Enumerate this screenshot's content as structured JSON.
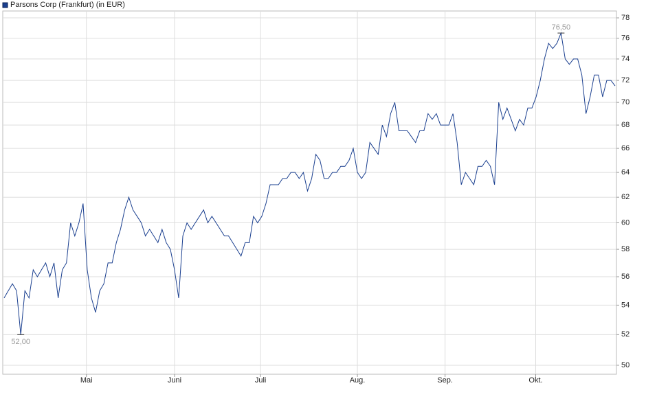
{
  "chart_data": {
    "type": "line",
    "series": [
      {
        "name": "Parsons Corp (Frankfurt) (in EUR)",
        "color": "#1a3f8f",
        "values": [
          54.5,
          55,
          55.5,
          55,
          52,
          55,
          54.5,
          56.5,
          56,
          56.5,
          57,
          56,
          57,
          54.5,
          56.5,
          57,
          60,
          59,
          60,
          61.5,
          56.5,
          54.5,
          53.5,
          55,
          55.5,
          57,
          57,
          58.5,
          59.5,
          61,
          62,
          61,
          60.5,
          60,
          59,
          59.5,
          59,
          58.5,
          59.5,
          58.5,
          58,
          56.5,
          54.5,
          59,
          60,
          59.5,
          60,
          60.5,
          61,
          60,
          60.5,
          60,
          59.5,
          59,
          59,
          58.5,
          58,
          57.5,
          58.5,
          58.5,
          60.5,
          60,
          60.5,
          61.5,
          63,
          63,
          63,
          63.5,
          63.5,
          64,
          64,
          63.5,
          64,
          62.5,
          63.5,
          65.5,
          65,
          63.5,
          63.5,
          64,
          64,
          64.5,
          64.5,
          65,
          66,
          64,
          63.5,
          64,
          66.5,
          66,
          65.5,
          68,
          67,
          69,
          70,
          67.5,
          67.5,
          67.5,
          67,
          66.5,
          67.5,
          67.5,
          69,
          68.5,
          69,
          68,
          68,
          68,
          69,
          66.5,
          63,
          64,
          63.5,
          63,
          64.5,
          64.5,
          65,
          64.5,
          63,
          70,
          68.5,
          69.5,
          68.5,
          67.5,
          68.5,
          68,
          69.5,
          69.5,
          70.5,
          72,
          74,
          75.5,
          75,
          75.5,
          76.5,
          74,
          73.5,
          74,
          74,
          72.5,
          69,
          70.5,
          72.5,
          72.5,
          70.5,
          72,
          72,
          71.5
        ]
      }
    ],
    "xlim": [
      -0.33,
      147.33
    ],
    "xticks": [
      {
        "value": 19.8,
        "label": "Mai"
      },
      {
        "value": 41,
        "label": "Juni"
      },
      {
        "value": 61.7,
        "label": "Juli"
      },
      {
        "value": 85,
        "label": "Aug."
      },
      {
        "value": 106.1,
        "label": "Sep."
      },
      {
        "value": 127.9,
        "label": "Okt."
      }
    ],
    "ylim": [
      49.43,
      78.69
    ],
    "yticks": [
      50,
      52,
      54,
      56,
      58,
      60,
      62,
      64,
      66,
      68,
      70,
      72,
      74,
      76,
      78
    ],
    "log_scale": true,
    "grid": true,
    "annotations": [
      {
        "x": 134,
        "y": 76.5,
        "label": "76,50",
        "position": "above"
      },
      {
        "x": 4,
        "y": 52,
        "label": "52,00",
        "position": "below"
      }
    ]
  }
}
